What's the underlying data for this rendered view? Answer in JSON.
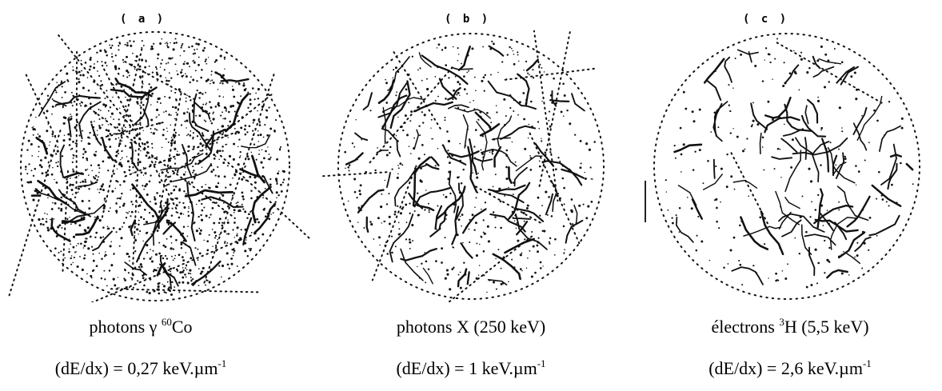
{
  "panels": [
    {
      "id": "a",
      "label": "( a )",
      "particle": {
        "pre": "photons γ ",
        "sup": "60",
        "post": "Co"
      },
      "let": {
        "pre": "(dE/dx) = 0,27 keV.µm",
        "sup": "-1"
      }
    },
    {
      "id": "b",
      "label": "( b )",
      "particle": {
        "pre": "photons X (250 keV)",
        "sup": "",
        "post": ""
      },
      "let": {
        "pre": "(dE/dx) = 1 keV.µm",
        "sup": "-1"
      }
    },
    {
      "id": "c",
      "label": "( c )",
      "particle": {
        "pre": "électrons ",
        "sup": "3",
        "post": "H (5,5 keV)"
      },
      "let": {
        "pre": "(dE/dx) = 2,6 keV.µm",
        "sup": "-1"
      }
    }
  ],
  "colors": {
    "ink": "#111111",
    "background": "#ffffff"
  }
}
